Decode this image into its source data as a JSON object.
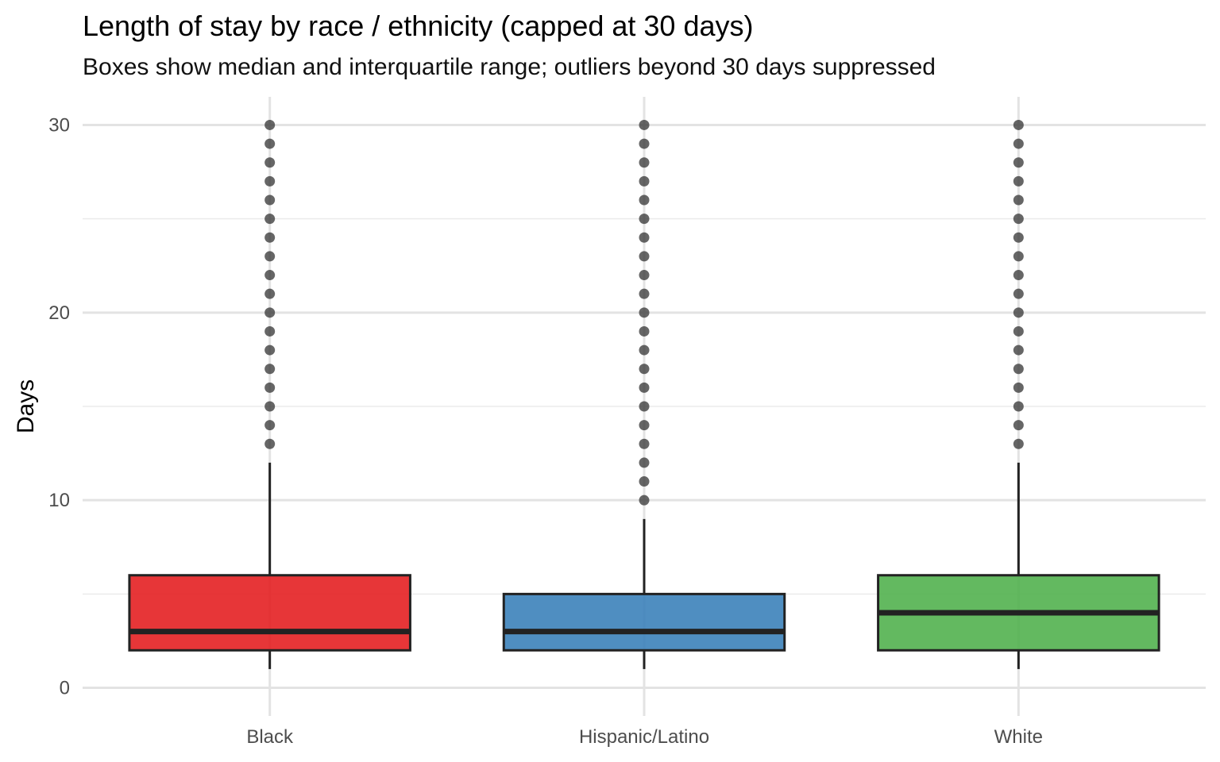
{
  "chart_data": {
    "type": "box",
    "title": "Length of stay by race / ethnicity (capped at 30 days)",
    "subtitle": "Boxes show median and interquartile range; outliers beyond 30 days suppressed",
    "xlabel": "",
    "ylabel": "Days",
    "ylim": [
      -1.5,
      31.5
    ],
    "y_ticks": [
      0,
      10,
      20,
      30
    ],
    "grid": true,
    "categories": [
      "Black",
      "Hispanic/Latino",
      "White"
    ],
    "boxes": [
      {
        "category": "Black",
        "color": "#e41a1c",
        "whisker_low": 1,
        "q1": 2,
        "median": 3,
        "q3": 6,
        "whisker_high": 12,
        "outliers": [
          13,
          14,
          15,
          16,
          17,
          18,
          19,
          20,
          21,
          22,
          23,
          24,
          25,
          26,
          27,
          28,
          29,
          30
        ]
      },
      {
        "category": "Hispanic/Latino",
        "color": "#377eb8",
        "whisker_low": 1,
        "q1": 2,
        "median": 3,
        "q3": 5,
        "whisker_high": 9,
        "outliers": [
          10,
          11,
          12,
          13,
          14,
          15,
          16,
          17,
          18,
          19,
          20,
          21,
          22,
          23,
          24,
          25,
          26,
          27,
          28,
          29,
          30
        ]
      },
      {
        "category": "White",
        "color": "#4daf4a",
        "whisker_low": 1,
        "q1": 2,
        "median": 4,
        "q3": 6,
        "whisker_high": 12,
        "outliers": [
          13,
          14,
          15,
          16,
          17,
          18,
          19,
          20,
          21,
          22,
          23,
          24,
          25,
          26,
          27,
          28,
          29,
          30
        ]
      }
    ]
  }
}
